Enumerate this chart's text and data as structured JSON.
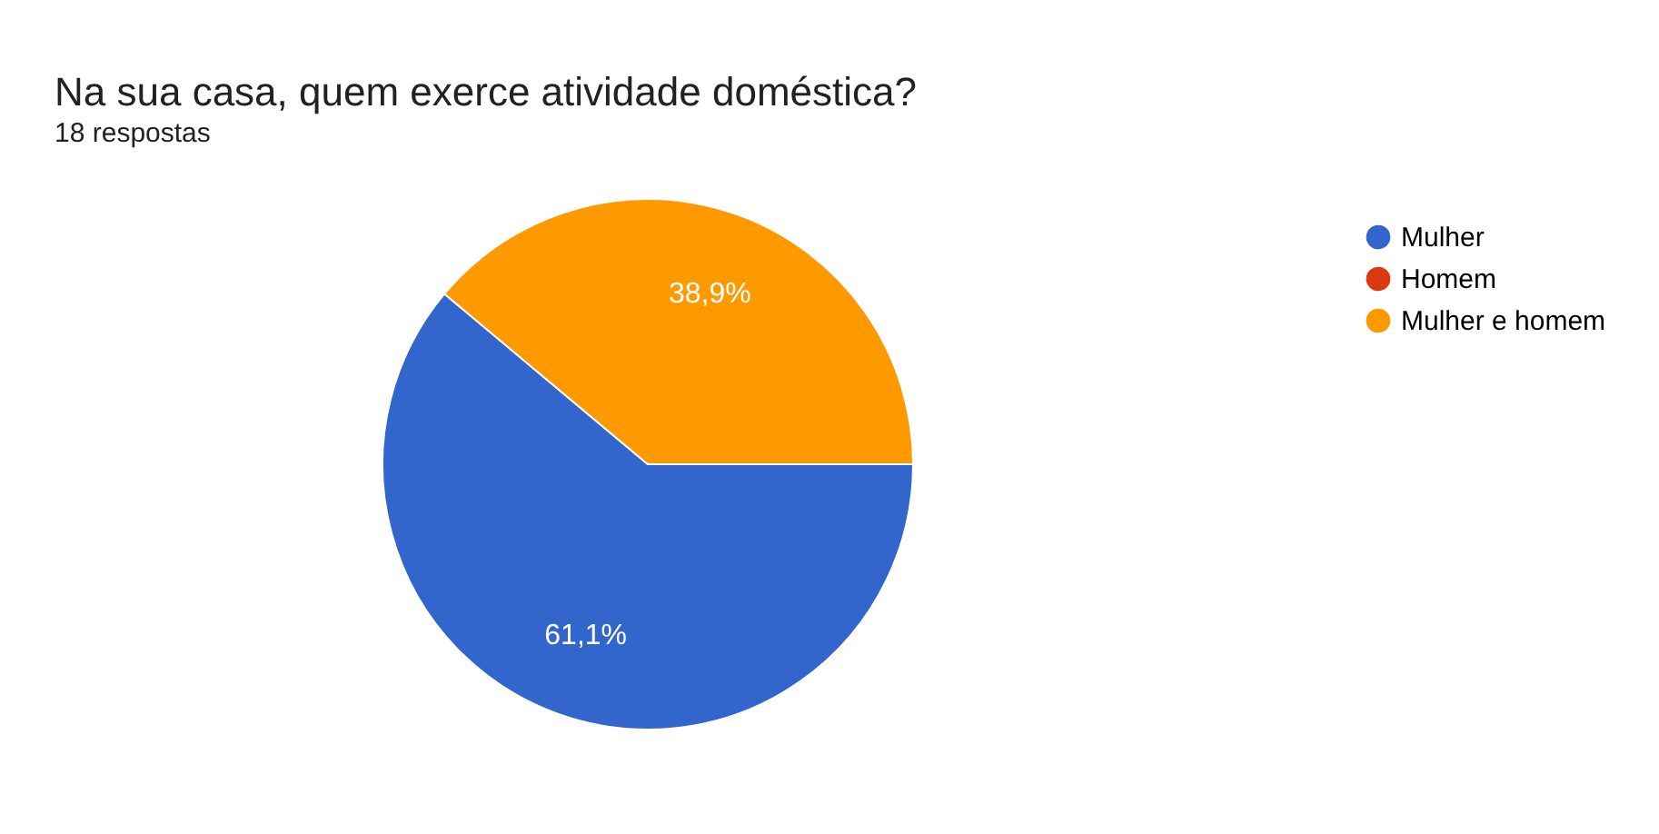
{
  "chart_data": {
    "type": "pie",
    "title": "Na sua casa, quem exerce atividade doméstica?",
    "subtitle": "18 respostas",
    "categories": [
      "Mulher",
      "Homem",
      "Mulher e homem"
    ],
    "values": [
      61.1,
      0,
      38.9
    ],
    "colors": [
      "#3366cc",
      "#dc3912",
      "#ff9900"
    ],
    "value_labels": [
      "61,1%",
      null,
      "38,9%"
    ],
    "legend": "top right"
  }
}
